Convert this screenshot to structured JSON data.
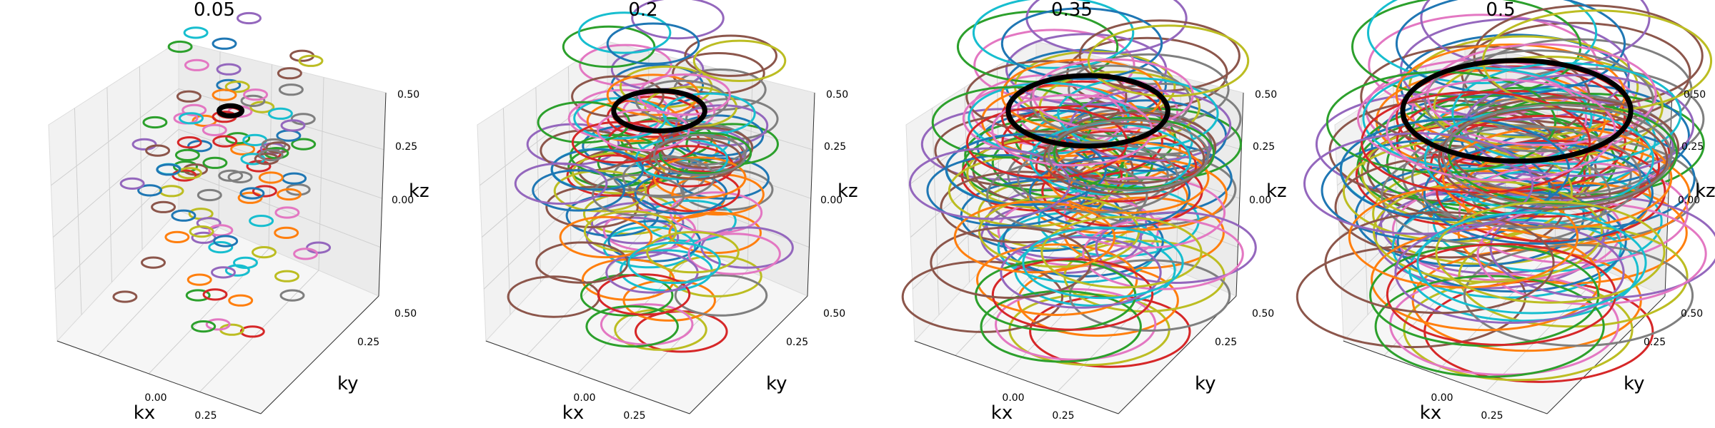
{
  "chart_data": [
    {
      "type": "3d-scatter",
      "title": "0.05",
      "xlabel": "kx",
      "ylabel": "ky",
      "zlabel": "kz",
      "xticks": [
        "0.00",
        "0.25"
      ],
      "yticks": [
        "0.25",
        "0.50"
      ],
      "zticks": [
        "0.00",
        "0.25",
        "0.50"
      ],
      "xlim": [
        -0.75,
        0.5
      ],
      "ylim": [
        -0.75,
        0.5
      ],
      "zlim": [
        -0.75,
        0.5
      ],
      "circle_radius": 0.05,
      "circle_count": 100,
      "highlight": {
        "color": "#000000",
        "center": [
          -0.05,
          0.0,
          0.15
        ]
      },
      "grid": true
    },
    {
      "type": "3d-scatter",
      "title": "0.2",
      "xlabel": "kx",
      "ylabel": "ky",
      "zlabel": "kz",
      "xticks": [
        "0.00",
        "0.25"
      ],
      "yticks": [
        "0.25",
        "0.50"
      ],
      "zticks": [
        "0.00",
        "0.25",
        "0.50"
      ],
      "xlim": [
        -0.75,
        0.5
      ],
      "ylim": [
        -0.75,
        0.5
      ],
      "zlim": [
        -0.75,
        0.5
      ],
      "circle_radius": 0.2,
      "circle_count": 100,
      "highlight": {
        "color": "#000000",
        "center": [
          -0.05,
          0.0,
          0.15
        ]
      },
      "grid": true
    },
    {
      "type": "3d-scatter",
      "title": "0.35",
      "xlabel": "kx",
      "ylabel": "ky",
      "zlabel": "kz",
      "xticks": [
        "0.00",
        "0.25"
      ],
      "yticks": [
        "0.25",
        "0.50"
      ],
      "zticks": [
        "0.00",
        "0.25",
        "0.50"
      ],
      "xlim": [
        -0.75,
        0.5
      ],
      "ylim": [
        -0.75,
        0.5
      ],
      "zlim": [
        -0.75,
        0.5
      ],
      "circle_radius": 0.35,
      "circle_count": 100,
      "highlight": {
        "color": "#000000",
        "center": [
          -0.05,
          0.0,
          0.15
        ]
      },
      "grid": true
    },
    {
      "type": "3d-scatter",
      "title": "0.5",
      "xlabel": "kx",
      "ylabel": "ky",
      "zlabel": "kz",
      "xticks": [
        "0.00",
        "0.25"
      ],
      "yticks": [
        "0.25",
        "0.50"
      ],
      "zticks": [
        "0.00",
        "0.25",
        "0.50"
      ],
      "xlim": [
        -0.75,
        0.5
      ],
      "ylim": [
        -0.75,
        0.5
      ],
      "zlim": [
        -0.75,
        0.5
      ],
      "circle_radius": 0.5,
      "circle_count": 100,
      "highlight": {
        "color": "#000000",
        "center": [
          -0.05,
          0.0,
          0.15
        ]
      },
      "grid": true
    }
  ],
  "palette": [
    "#1f77b4",
    "#ff7f0e",
    "#2ca02c",
    "#d62728",
    "#9467bd",
    "#8c564b",
    "#e377c2",
    "#7f7f7f",
    "#bcbd22",
    "#17becf"
  ]
}
